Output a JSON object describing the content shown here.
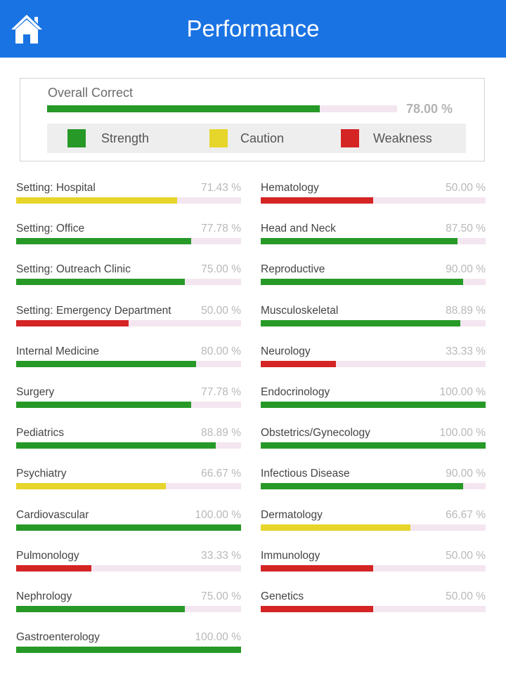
{
  "header": {
    "title": "Performance",
    "home_icon": "home-icon",
    "bg_color": "#1a73e3"
  },
  "overall": {
    "label": "Overall Correct",
    "value": 78.0,
    "percent_text": "78.00 %"
  },
  "colors": {
    "strength": "#279927",
    "caution": "#e6d52a",
    "weakness": "#d42424",
    "track": "#f4e6f0"
  },
  "legend": [
    {
      "label": "Strength",
      "level": "strength"
    },
    {
      "label": "Caution",
      "level": "caution"
    },
    {
      "label": "Weakness",
      "level": "weakness"
    }
  ],
  "categories_left": [
    {
      "name": "Setting: Hospital",
      "value": 71.43,
      "percent_text": "71.43 %",
      "level": "caution"
    },
    {
      "name": "Setting: Office",
      "value": 77.78,
      "percent_text": "77.78 %",
      "level": "strength"
    },
    {
      "name": "Setting: Outreach Clinic",
      "value": 75.0,
      "percent_text": "75.00 %",
      "level": "strength"
    },
    {
      "name": "Setting: Emergency Department",
      "value": 50.0,
      "percent_text": "50.00 %",
      "level": "weakness"
    },
    {
      "name": "Internal Medicine",
      "value": 80.0,
      "percent_text": "80.00 %",
      "level": "strength"
    },
    {
      "name": "Surgery",
      "value": 77.78,
      "percent_text": "77.78 %",
      "level": "strength"
    },
    {
      "name": "Pediatrics",
      "value": 88.89,
      "percent_text": "88.89 %",
      "level": "strength"
    },
    {
      "name": "Psychiatry",
      "value": 66.67,
      "percent_text": "66.67 %",
      "level": "caution"
    },
    {
      "name": "Cardiovascular",
      "value": 100.0,
      "percent_text": "100.00 %",
      "level": "strength"
    },
    {
      "name": "Pulmonology",
      "value": 33.33,
      "percent_text": "33.33 %",
      "level": "weakness"
    },
    {
      "name": "Nephrology",
      "value": 75.0,
      "percent_text": "75.00 %",
      "level": "strength"
    },
    {
      "name": "Gastroenterology",
      "value": 100.0,
      "percent_text": "100.00 %",
      "level": "strength"
    }
  ],
  "categories_right": [
    {
      "name": "Hematology",
      "value": 50.0,
      "percent_text": "50.00 %",
      "level": "weakness"
    },
    {
      "name": "Head and Neck",
      "value": 87.5,
      "percent_text": "87.50 %",
      "level": "strength"
    },
    {
      "name": "Reproductive",
      "value": 90.0,
      "percent_text": "90.00 %",
      "level": "strength"
    },
    {
      "name": "Musculoskeletal",
      "value": 88.89,
      "percent_text": "88.89 %",
      "level": "strength"
    },
    {
      "name": "Neurology",
      "value": 33.33,
      "percent_text": "33.33 %",
      "level": "weakness"
    },
    {
      "name": "Endocrinology",
      "value": 100.0,
      "percent_text": "100.00 %",
      "level": "strength"
    },
    {
      "name": "Obstetrics/Gynecology",
      "value": 100.0,
      "percent_text": "100.00 %",
      "level": "strength"
    },
    {
      "name": "Infectious Disease",
      "value": 90.0,
      "percent_text": "90.00 %",
      "level": "strength"
    },
    {
      "name": "Dermatology",
      "value": 66.67,
      "percent_text": "66.67 %",
      "level": "caution"
    },
    {
      "name": "Immunology",
      "value": 50.0,
      "percent_text": "50.00 %",
      "level": "weakness"
    },
    {
      "name": "Genetics",
      "value": 50.0,
      "percent_text": "50.00 %",
      "level": "weakness"
    }
  ]
}
